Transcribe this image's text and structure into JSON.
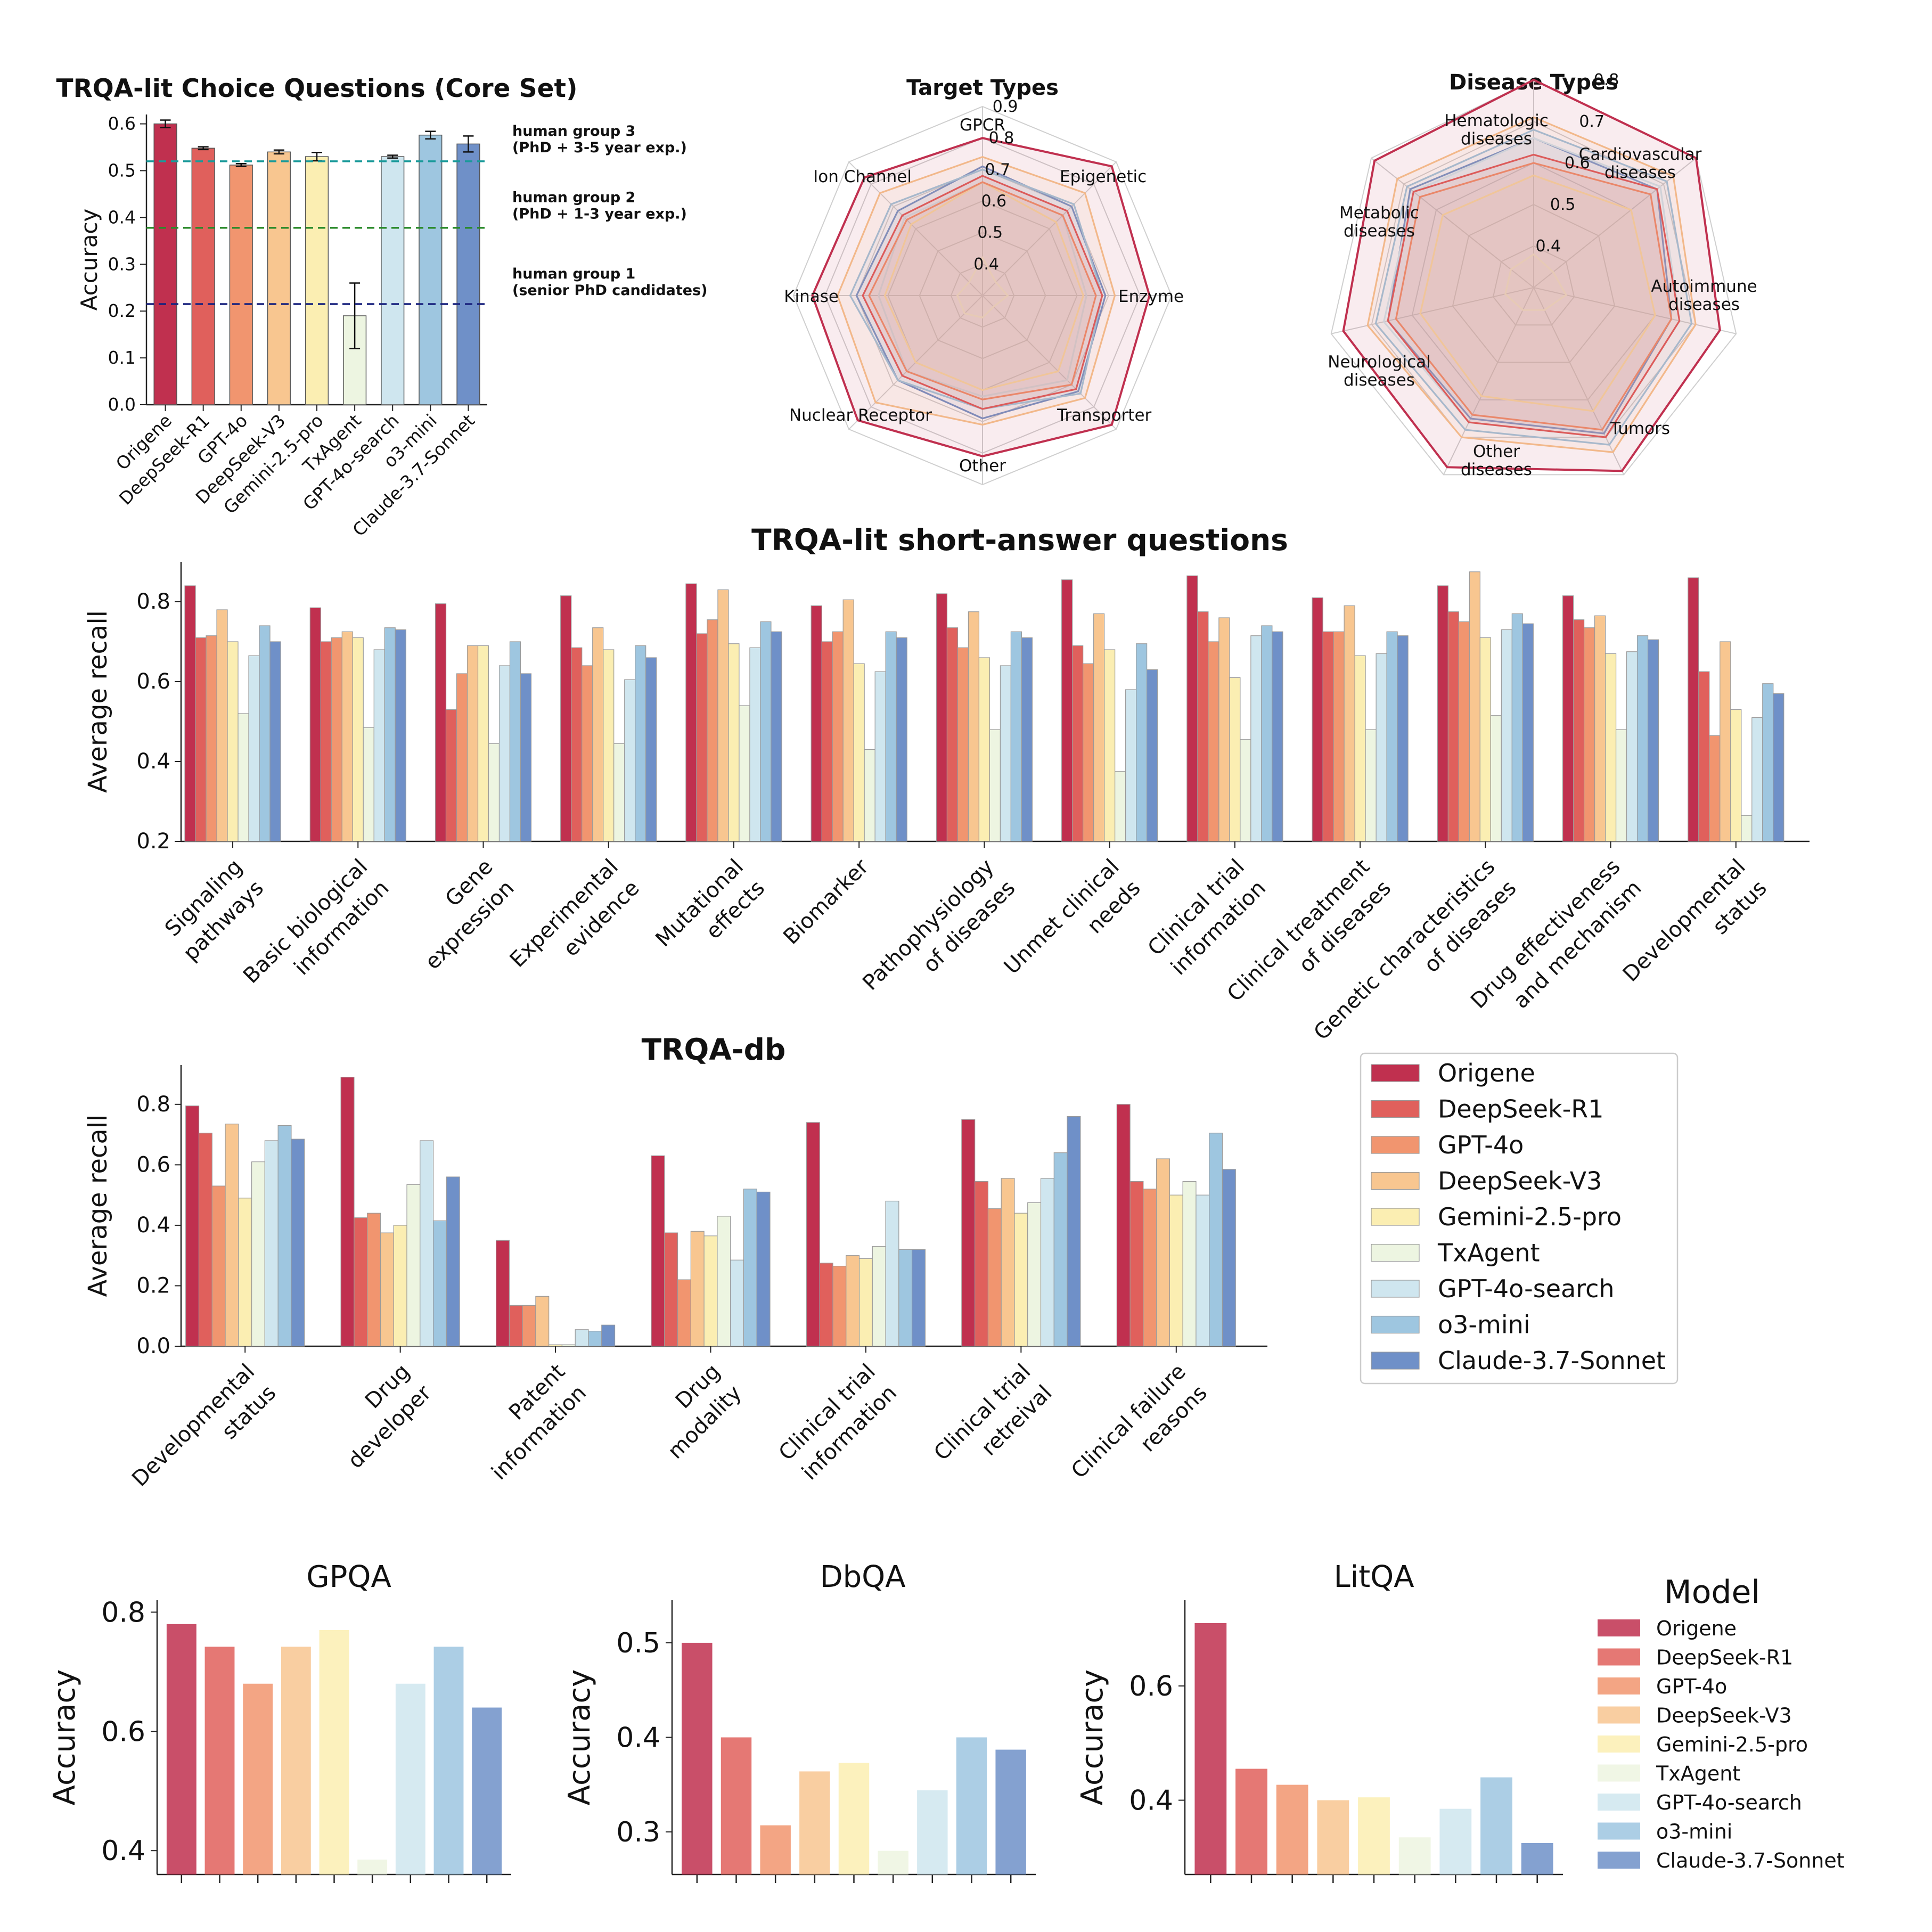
{
  "models": [
    "Origene",
    "DeepSeek-R1",
    "GPT-4o",
    "DeepSeek-V3",
    "Gemini-2.5-pro",
    "TxAgent",
    "GPT-4o-search",
    "o3-mini",
    "Claude-3.7-Sonnet"
  ],
  "colors": [
    "#c0304f",
    "#e0605c",
    "#f1956f",
    "#f8c690",
    "#fbeeb2",
    "#edf5e1",
    "#cfe6ef",
    "#9ec6e0",
    "#6f90c8"
  ],
  "chart_data": [
    {
      "id": "choice",
      "type": "bar",
      "title": "TRQA-lit Choice Questions (Core Set)",
      "ylabel": "Accuracy",
      "ylim": [
        0,
        0.62
      ],
      "yticks": [
        "0.0",
        "0.1",
        "0.2",
        "0.3",
        "0.4",
        "0.5",
        "0.6"
      ],
      "categories": [
        "Origene",
        "DeepSeek-R1",
        "GPT-4o",
        "DeepSeek-V3",
        "Gemini-2.5-pro",
        "TxAgent",
        "GPT-4o-search",
        "o3-mini",
        "Claude-3.7-Sonnet"
      ],
      "values": [
        0.6,
        0.548,
        0.512,
        0.54,
        0.53,
        0.19,
        0.53,
        0.576,
        0.557
      ],
      "errors": [
        0.008,
        0.003,
        0.003,
        0.004,
        0.009,
        0.07,
        0.003,
        0.008,
        0.017
      ],
      "hlines": [
        {
          "y": 0.52,
          "color": "#1a9a9a",
          "line1": "human group 3",
          "line2": "(PhD + 3-5 year exp.)"
        },
        {
          "y": 0.378,
          "color": "#2a8a2a",
          "line1": "human group 2",
          "line2": "(PhD + 1-3 year exp.)"
        },
        {
          "y": 0.215,
          "color": "#1a237e",
          "line1": "human group 1",
          "line2": "(senior PhD candidates)"
        }
      ]
    },
    {
      "id": "radar-target",
      "type": "radar",
      "title": "Target Types",
      "axes": [
        "GPCR",
        "Epigenetic",
        "Enzyme",
        "Transporter",
        "Other",
        "Nuclear Receptor",
        "Kinase",
        "Ion Channel"
      ],
      "rlim": [
        0.3,
        0.9
      ],
      "rticks": [
        "0.4",
        "0.5",
        "0.6",
        "0.7",
        "0.8",
        "0.9"
      ],
      "series": [
        {
          "name": "Origene",
          "values": [
            0.8,
            0.88,
            0.83,
            0.88,
            0.81,
            0.86,
            0.84,
            0.83
          ]
        },
        {
          "name": "DeepSeek-R1",
          "values": [
            0.68,
            0.68,
            0.68,
            0.72,
            0.66,
            0.66,
            0.68,
            0.66
          ]
        },
        {
          "name": "GPT-4o",
          "values": [
            0.66,
            0.66,
            0.66,
            0.7,
            0.63,
            0.64,
            0.66,
            0.64
          ]
        },
        {
          "name": "DeepSeek-V3",
          "values": [
            0.74,
            0.76,
            0.72,
            0.76,
            0.71,
            0.78,
            0.76,
            0.76
          ]
        },
        {
          "name": "Gemini-2.5-pro",
          "values": [
            0.66,
            0.63,
            0.62,
            0.64,
            0.6,
            0.6,
            0.61,
            0.62
          ]
        },
        {
          "name": "TxAgent",
          "values": [
            0.42,
            0.36,
            0.38,
            0.35,
            0.37,
            0.38,
            0.38,
            0.36
          ]
        },
        {
          "name": "GPT-4o-search",
          "values": [
            0.66,
            0.66,
            0.63,
            0.68,
            0.62,
            0.64,
            0.63,
            0.65
          ]
        },
        {
          "name": "o3-mini",
          "values": [
            0.7,
            0.71,
            0.68,
            0.74,
            0.66,
            0.68,
            0.72,
            0.71
          ]
        },
        {
          "name": "Claude-3.7-Sonnet",
          "values": [
            0.71,
            0.7,
            0.69,
            0.73,
            0.69,
            0.68,
            0.7,
            0.68
          ]
        }
      ]
    },
    {
      "id": "radar-disease",
      "type": "radar",
      "title": "Disease Types",
      "axes": [
        "Hematologic diseases",
        "Cardiovascular diseases",
        "Autoimmune diseases",
        "Tumors",
        "Other diseases",
        "Neurological diseases",
        "Metabolic diseases"
      ],
      "rlim": [
        0.3,
        0.8
      ],
      "rticks": [
        "0.4",
        "0.5",
        "0.6",
        "0.7",
        "0.8"
      ],
      "series": [
        {
          "name": "Origene",
          "values": [
            0.8,
            0.8,
            0.76,
            0.79,
            0.78,
            0.77,
            0.79
          ]
        },
        {
          "name": "DeepSeek-R1",
          "values": [
            0.62,
            0.68,
            0.66,
            0.7,
            0.66,
            0.66,
            0.67
          ]
        },
        {
          "name": "GPT-4o",
          "values": [
            0.6,
            0.66,
            0.64,
            0.68,
            0.64,
            0.64,
            0.65
          ]
        },
        {
          "name": "DeepSeek-V3",
          "values": [
            0.71,
            0.73,
            0.7,
            0.74,
            0.7,
            0.71,
            0.72
          ]
        },
        {
          "name": "Gemini-2.5-pro",
          "values": [
            0.57,
            0.6,
            0.6,
            0.63,
            0.59,
            0.58,
            0.58
          ]
        },
        {
          "name": "TxAgent",
          "values": [
            0.38,
            0.36,
            0.38,
            0.36,
            0.36,
            0.37,
            0.37
          ]
        },
        {
          "name": "GPT-4o-search",
          "values": [
            0.66,
            0.69,
            0.66,
            0.7,
            0.66,
            0.67,
            0.67
          ]
        },
        {
          "name": "o3-mini",
          "values": [
            0.68,
            0.71,
            0.69,
            0.72,
            0.68,
            0.69,
            0.69
          ]
        },
        {
          "name": "Claude-3.7-Sonnet",
          "values": [
            0.66,
            0.68,
            0.64,
            0.69,
            0.65,
            0.66,
            0.68
          ]
        }
      ]
    },
    {
      "id": "short-answer",
      "type": "bar",
      "title": "TRQA-lit short-answer questions",
      "ylabel": "Average recall",
      "ylim": [
        0.2,
        0.9
      ],
      "yticks": [
        "0.2",
        "0.4",
        "0.6",
        "0.8"
      ],
      "categories": [
        [
          "Signaling",
          "pathways"
        ],
        [
          "Basic biological",
          "information"
        ],
        [
          "Gene",
          "expression"
        ],
        [
          "Experimental",
          "evidence"
        ],
        [
          "Mutational",
          "effects"
        ],
        [
          "Biomarker"
        ],
        [
          "Pathophysiology",
          "of diseases"
        ],
        [
          "Unmet clinical",
          "needs"
        ],
        [
          "Clinical trial",
          "information"
        ],
        [
          "Clinical treatment",
          "of diseases"
        ],
        [
          "Genetic characteristics",
          "of diseases"
        ],
        [
          "Drug effectiveness",
          "and mechanism"
        ],
        [
          "Developmental",
          "status"
        ]
      ],
      "values": [
        [
          0.84,
          0.71,
          0.715,
          0.78,
          0.7,
          0.52,
          0.665,
          0.74,
          0.7
        ],
        [
          0.785,
          0.7,
          0.71,
          0.725,
          0.71,
          0.485,
          0.68,
          0.735,
          0.73
        ],
        [
          0.795,
          0.53,
          0.62,
          0.69,
          0.69,
          0.445,
          0.64,
          0.7,
          0.62
        ],
        [
          0.815,
          0.685,
          0.64,
          0.735,
          0.68,
          0.445,
          0.605,
          0.69,
          0.66
        ],
        [
          0.845,
          0.72,
          0.755,
          0.83,
          0.695,
          0.54,
          0.685,
          0.75,
          0.725
        ],
        [
          0.79,
          0.7,
          0.725,
          0.805,
          0.645,
          0.43,
          0.625,
          0.725,
          0.71
        ],
        [
          0.82,
          0.735,
          0.685,
          0.775,
          0.66,
          0.48,
          0.64,
          0.725,
          0.71
        ],
        [
          0.855,
          0.69,
          0.645,
          0.77,
          0.68,
          0.375,
          0.58,
          0.695,
          0.63
        ],
        [
          0.865,
          0.775,
          0.7,
          0.76,
          0.61,
          0.455,
          0.715,
          0.74,
          0.725
        ],
        [
          0.81,
          0.725,
          0.725,
          0.79,
          0.665,
          0.48,
          0.67,
          0.725,
          0.715
        ],
        [
          0.84,
          0.775,
          0.75,
          0.875,
          0.71,
          0.515,
          0.73,
          0.77,
          0.745
        ],
        [
          0.815,
          0.755,
          0.735,
          0.765,
          0.67,
          0.48,
          0.675,
          0.715,
          0.705
        ],
        [
          0.86,
          0.625,
          0.465,
          0.7,
          0.53,
          0.265,
          0.51,
          0.595,
          0.57
        ]
      ]
    },
    {
      "id": "db",
      "type": "bar",
      "title": "TRQA-db",
      "ylabel": "Average recall",
      "ylim": [
        0,
        0.93
      ],
      "yticks": [
        "0.0",
        "0.2",
        "0.4",
        "0.6",
        "0.8"
      ],
      "categories": [
        [
          "Developmental",
          "status"
        ],
        [
          "Drug",
          "developer"
        ],
        [
          "Patent",
          "information"
        ],
        [
          "Drug",
          "modality"
        ],
        [
          "Clinical trial",
          "information"
        ],
        [
          "Clinical trial",
          "retreival"
        ],
        [
          "Clinical failure",
          "reasons"
        ]
      ],
      "values": [
        [
          0.795,
          0.705,
          0.53,
          0.735,
          0.49,
          0.61,
          0.68,
          0.73,
          0.685
        ],
        [
          0.89,
          0.425,
          0.44,
          0.375,
          0.4,
          0.535,
          0.68,
          0.415,
          0.56
        ],
        [
          0.35,
          0.135,
          0.135,
          0.165,
          0.005,
          0.005,
          0.055,
          0.05,
          0.07
        ],
        [
          0.63,
          0.375,
          0.22,
          0.38,
          0.365,
          0.43,
          0.285,
          0.52,
          0.51
        ],
        [
          0.74,
          0.275,
          0.265,
          0.3,
          0.29,
          0.33,
          0.48,
          0.32,
          0.32
        ],
        [
          0.75,
          0.545,
          0.455,
          0.555,
          0.44,
          0.475,
          0.555,
          0.64,
          0.76
        ],
        [
          0.8,
          0.545,
          0.52,
          0.62,
          0.5,
          0.545,
          0.5,
          0.705,
          0.585
        ]
      ]
    },
    {
      "id": "gpqa",
      "type": "bar",
      "title": "GPQA",
      "ylabel": "Accuracy",
      "ylim": [
        0.36,
        0.82
      ],
      "yticks": [
        "0.4",
        "0.6",
        "0.8"
      ],
      "ytick_values": [
        0.4,
        0.6,
        0.8
      ],
      "values": [
        0.78,
        0.742,
        0.68,
        0.742,
        0.77,
        0.385,
        0.68,
        0.742,
        0.64
      ]
    },
    {
      "id": "dbqa",
      "type": "bar",
      "title": "DbQA",
      "ylabel": "Accuracy",
      "ylim": [
        0.255,
        0.545
      ],
      "yticks": [
        "0.3",
        "0.4",
        "0.5"
      ],
      "ytick_values": [
        0.3,
        0.4,
        0.5
      ],
      "values": [
        0.5,
        0.4,
        0.307,
        0.364,
        0.373,
        0.28,
        0.344,
        0.4,
        0.387
      ]
    },
    {
      "id": "litqa",
      "type": "bar",
      "title": "LitQA",
      "ylabel": "Accuracy",
      "ylim": [
        0.27,
        0.75
      ],
      "yticks": [
        "0.4",
        "0.6"
      ],
      "ytick_values": [
        0.4,
        0.6
      ],
      "values": [
        0.71,
        0.455,
        0.427,
        0.4,
        0.405,
        0.335,
        0.385,
        0.44,
        0.325
      ]
    }
  ],
  "legend_main": {
    "placement": "right"
  },
  "legend_bottom": {
    "title": "Model"
  }
}
